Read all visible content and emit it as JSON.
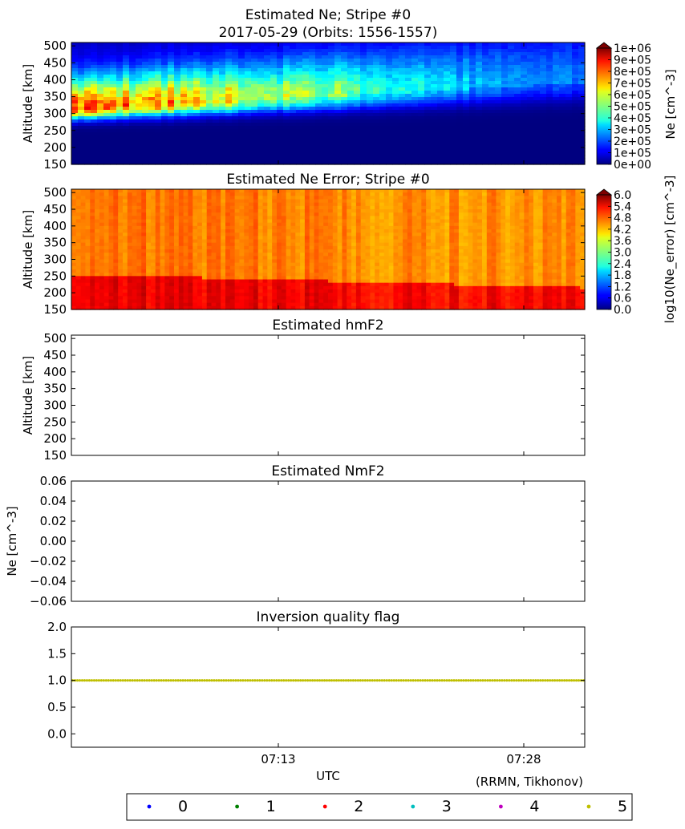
{
  "figure": {
    "attribution": "(RRMN, Tikhonov)",
    "xlabel": "UTC",
    "xticks": [
      "07:13",
      "07:28"
    ]
  },
  "chart_data": [
    {
      "type": "heatmap",
      "title": "Estimated Ne; Stripe #0",
      "subtitle": "2017-05-29 (Orbits: 1556-1557)",
      "ylabel": "Altitude [km]",
      "ylim": [
        150,
        510
      ],
      "yticks": [
        "150",
        "200",
        "250",
        "300",
        "350",
        "400",
        "450",
        "500"
      ],
      "colorbar": {
        "label": "Ne [cm^-3]",
        "range": [
          0,
          1000000
        ],
        "ticks": [
          "0e+00",
          "1e+05",
          "2e+05",
          "3e+05",
          "4e+05",
          "5e+05",
          "6e+05",
          "7e+05",
          "8e+05",
          "9e+05",
          "1e+06"
        ],
        "colormap": "jet",
        "extend": "max"
      },
      "description_values": {
        "peak_altitude_km_start": 310,
        "peak_altitude_km_end": 390,
        "peak_ne_start": 750000,
        "peak_ne_end": 200000
      }
    },
    {
      "type": "heatmap",
      "title": "Estimated Ne Error; Stripe #0",
      "ylabel": "Altitude [km]",
      "ylim": [
        150,
        510
      ],
      "yticks": [
        "150",
        "200",
        "250",
        "300",
        "350",
        "400",
        "450",
        "500"
      ],
      "colorbar": {
        "label": "log10(Ne_error) [cm^-3]",
        "range": [
          0,
          6
        ],
        "ticks": [
          "0.0",
          "0.6",
          "1.2",
          "1.8",
          "2.4",
          "3.0",
          "3.6",
          "4.2",
          "4.8",
          "5.4",
          "6.0"
        ],
        "colormap": "jet",
        "extend": "max"
      },
      "description_values": {
        "low_altitude_log_error": 5.4,
        "high_altitude_log_error": 4.6
      }
    },
    {
      "type": "scatter",
      "title": "Estimated hmF2",
      "ylabel": "Altitude [km]",
      "ylim": [
        150,
        510
      ],
      "yticks": [
        "150",
        "200",
        "250",
        "300",
        "350",
        "400",
        "450",
        "500"
      ],
      "points": []
    },
    {
      "type": "scatter",
      "title": "Estimated NmF2",
      "ylabel": "Ne [cm^-3]",
      "ylim": [
        -0.06,
        0.06
      ],
      "yticks": [
        "0.06",
        "0.04",
        "0.02",
        "0.00",
        "−0.02",
        "−0.04",
        "−0.06"
      ],
      "points": []
    },
    {
      "type": "scatter",
      "title": "Inversion quality flag",
      "ylabel": "",
      "ylim": [
        -0.25,
        2.0
      ],
      "yticks": [
        "2.0",
        "1.5",
        "1.0",
        "0.5",
        "0.0"
      ],
      "series": [
        {
          "name": "5",
          "color": "#bfbf00",
          "constant_value": 1.0
        }
      ]
    }
  ],
  "legend": {
    "placement": "bottom",
    "entries": [
      {
        "label": "0",
        "color": "#0000ff"
      },
      {
        "label": "1",
        "color": "#008000"
      },
      {
        "label": "2",
        "color": "#ff0000"
      },
      {
        "label": "3",
        "color": "#00bfbf"
      },
      {
        "label": "4",
        "color": "#bf00bf"
      },
      {
        "label": "5",
        "color": "#bfbf00"
      }
    ]
  }
}
